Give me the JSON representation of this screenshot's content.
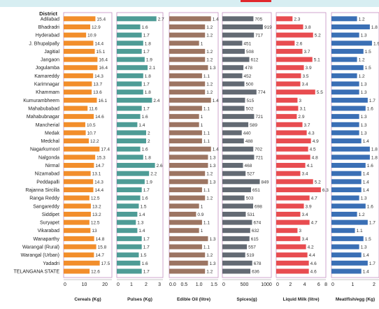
{
  "district_header": "District",
  "chart_data": {
    "type": "bar",
    "orientation": "horizontal",
    "small_multiples": true,
    "categories": [
      "Adilabad",
      "Bhadradri",
      "Hyderabad",
      "J. Bhupalpally",
      "Jagitial",
      "Jangaon",
      "Jogulamba",
      "Kamareddy",
      "Karimnagar",
      "Khammam",
      "Kumurambheem",
      "Mahabubabad",
      "Mahabubnagar",
      "Mancherial",
      "Medak",
      "Medchal",
      "Nagarkurnool",
      "Nalgonda",
      "Nirmal",
      "Nizamabad",
      "Peddapalli",
      "Rajanna Sircilla",
      "Ranga Reddy",
      "Sangareddy",
      "Siddipet",
      "Suryapet",
      "Vikarabad",
      "Wanaparthy",
      "Warangal (Rural)",
      "Warangal (Urban)",
      "Yadadri",
      "TELANGANA STATE"
    ],
    "series": [
      {
        "name": "Cereals (Kg)",
        "color": "#f28e2b",
        "xlim": [
          0,
          20
        ],
        "ticks": [
          "0",
          "10",
          "20"
        ],
        "values": [
          15.4,
          12.9,
          10.9,
          14.4,
          15.1,
          16.4,
          16.4,
          14.3,
          13.7,
          13.6,
          16.1,
          11.6,
          14.6,
          10.5,
          10.7,
          12.2,
          17.4,
          15.3,
          14.7,
          13.1,
          14.3,
          14.4,
          12.5,
          13.2,
          13.2,
          12.5,
          13.0,
          14.8,
          15.8,
          14.7,
          17.5,
          12.6
        ]
      },
      {
        "name": "Pulses (Kg)",
        "color": "#4e9c96",
        "xlim": [
          0,
          3
        ],
        "ticks": [
          "0",
          "1",
          "2",
          "3"
        ],
        "values": [
          2.7,
          1.6,
          1.7,
          1.8,
          1.7,
          1.9,
          2.1,
          1.8,
          1.7,
          1.8,
          2.4,
          1.7,
          1.6,
          1.4,
          2.0,
          2.0,
          1.6,
          1.8,
          2.6,
          2.2,
          1.9,
          1.7,
          1.6,
          1.5,
          1.4,
          1.3,
          1.4,
          1.7,
          1.7,
          1.5,
          1.6,
          1.7
        ]
      },
      {
        "name": "Edible Oil (litre)",
        "color": "#9c7562",
        "xlim": [
          0,
          1.5
        ],
        "ticks": [
          "0.0",
          "0.5",
          "1.0",
          "1.5"
        ],
        "values": [
          1.4,
          1.2,
          1.2,
          1.0,
          1.2,
          1.2,
          1.3,
          1.1,
          1.2,
          1.2,
          1.4,
          1.1,
          1.0,
          1.0,
          1.1,
          1.1,
          1.4,
          1.3,
          1.3,
          1.2,
          1.3,
          1.1,
          1.2,
          1.0,
          0.9,
          1.1,
          1.0,
          1.3,
          1.1,
          1.2,
          1.3,
          1.2
        ]
      },
      {
        "name": "Spices(g)",
        "color": "#636a73",
        "xlim": [
          0,
          1000
        ],
        "ticks": [
          "0",
          "500",
          "1000"
        ],
        "values": [
          705,
          919,
          717,
          451,
          508,
          612,
          478,
          452,
          500,
          774,
          515,
          502,
          721,
          589,
          440,
          488,
          702,
          721,
          468,
          527,
          849,
          651,
          503,
          698,
          531,
          674,
          632,
          615,
          557,
          519,
          678,
          636
        ]
      },
      {
        "name": "Liquid Milk (litre)",
        "color": "#e84c50",
        "xlim": [
          0,
          7
        ],
        "ticks": [
          "0",
          "2",
          "4",
          "6",
          "8"
        ],
        "values": [
          2.3,
          3.8,
          5.2,
          2.6,
          3.7,
          5.1,
          3.9,
          3.5,
          3.4,
          5.5,
          3.0,
          3.1,
          2.9,
          3.7,
          4.3,
          4.9,
          4.5,
          4.8,
          4.1,
          3.4,
          5.2,
          6.3,
          4.7,
          3.9,
          3.4,
          4.7,
          3.0,
          3.4,
          4.2,
          4.4,
          4.6,
          4.6
        ]
      },
      {
        "name": "Meat/fish/egg (Kg)",
        "color": "#3a6fb5",
        "xlim": [
          0,
          2
        ],
        "ticks": [
          "0",
          "1",
          "2"
        ],
        "values": [
          1.2,
          1.8,
          1.3,
          1.9,
          1.5,
          1.2,
          1.5,
          1.2,
          1.3,
          1.3,
          1.7,
          1.6,
          1.3,
          1.3,
          1.3,
          1.4,
          1.8,
          1.8,
          1.6,
          1.4,
          1.4,
          1.4,
          1.3,
          1.6,
          1.2,
          1.7,
          1.1,
          1.5,
          1.3,
          1.4,
          1.7,
          1.4
        ]
      }
    ]
  }
}
